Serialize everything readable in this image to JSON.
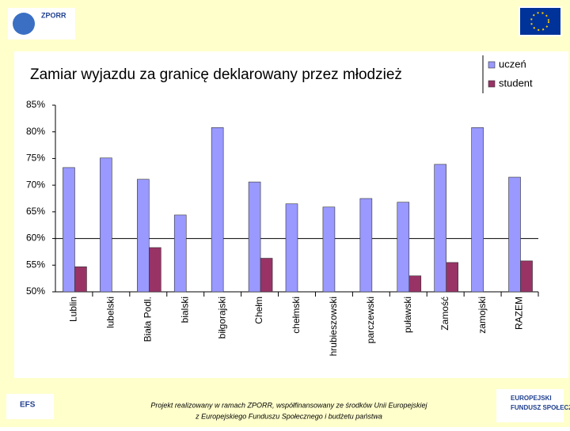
{
  "slide": {
    "logo_top": "ZPORR",
    "logo_left": "EFS",
    "logo_right": [
      "EUROPEJSKI",
      "FUNDUSZ SPOŁECZNY"
    ],
    "footer": [
      "Projekt realizowany w ramach ZPORR, współfinansowany ze środków Unii Europejskiej",
      "z Europejskiego Funduszu Społecznego i budżetu państwa"
    ]
  },
  "chart_data": {
    "type": "bar",
    "title": "Zamiar wyjazdu za granicę deklarowany przez młodzież",
    "categories": [
      "Lublin",
      "lubelski",
      "Biała Podl.",
      "bialski",
      "biłgorajski",
      "Chełm",
      "chełmski",
      "hrubieszowski",
      "parczewski",
      "puławski",
      "Zamość",
      "zamojski",
      "RAZEM"
    ],
    "series": [
      {
        "name": "uczeń",
        "color": "#9999ff",
        "values": [
          73.3,
          75.1,
          71.1,
          64.4,
          80.8,
          70.6,
          66.5,
          65.9,
          67.5,
          66.8,
          73.9,
          80.8,
          71.5
        ]
      },
      {
        "name": "student",
        "color": "#993366",
        "values": [
          54.7,
          null,
          58.3,
          null,
          null,
          56.3,
          null,
          null,
          null,
          53,
          55.5,
          null,
          55.8
        ]
      }
    ],
    "ylim": [
      50,
      85
    ],
    "yticks": [
      {
        "value": 50,
        "label": "50%"
      },
      {
        "value": 55,
        "label": "55%"
      },
      {
        "value": 60,
        "label": "60%"
      },
      {
        "value": 65,
        "label": "65%"
      },
      {
        "value": 70,
        "label": "70%"
      },
      {
        "value": 75,
        "label": "75%"
      },
      {
        "value": 80,
        "label": "80%"
      },
      {
        "value": 85,
        "label": "85%"
      }
    ],
    "reference_line": 60,
    "legend": "top-right"
  }
}
